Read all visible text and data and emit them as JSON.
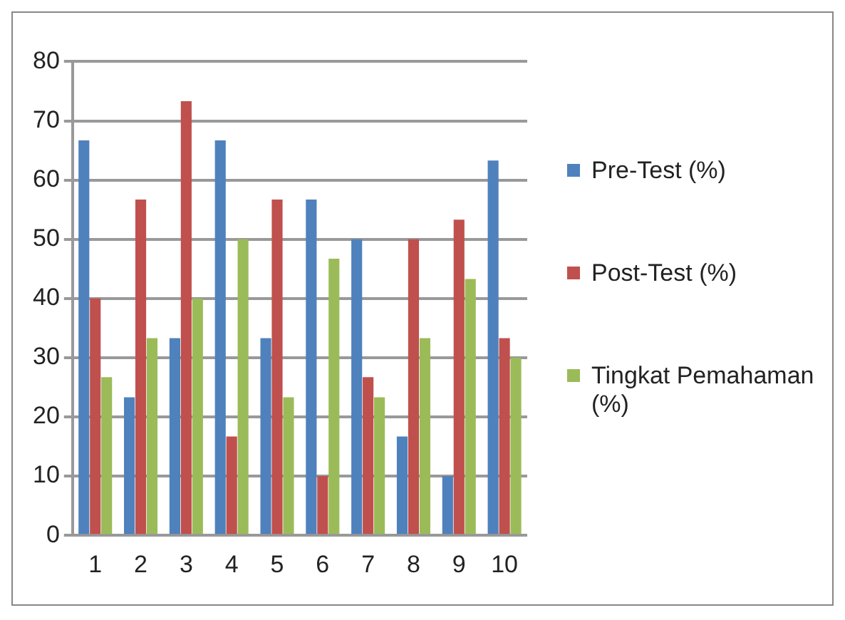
{
  "chart_data": {
    "type": "bar",
    "categories": [
      "1",
      "2",
      "3",
      "4",
      "5",
      "6",
      "7",
      "8",
      "9",
      "10"
    ],
    "series": [
      {
        "name": "Pre-Test (%)",
        "color": "#4f81bd",
        "values": [
          66.7,
          23.3,
          33.3,
          66.7,
          33.3,
          56.7,
          50,
          16.7,
          10,
          63.3
        ]
      },
      {
        "name": "Post-Test (%)",
        "color": "#c0504d",
        "values": [
          40,
          56.7,
          73.3,
          16.7,
          56.7,
          10,
          26.7,
          50,
          53.3,
          33.3
        ]
      },
      {
        "name": "Tingkat Pemahaman (%)",
        "color": "#9bbb59",
        "values": [
          26.7,
          33.3,
          40,
          50,
          23.3,
          46.7,
          23.3,
          33.3,
          43.3,
          30
        ]
      }
    ],
    "ylim": [
      0,
      80
    ],
    "yticks": [
      0,
      10,
      20,
      30,
      40,
      50,
      60,
      70,
      80
    ],
    "grid": "y",
    "legend": "right"
  }
}
